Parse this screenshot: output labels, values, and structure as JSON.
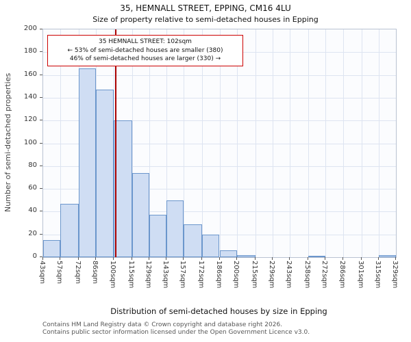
{
  "chart_data": {
    "type": "bar",
    "title": "35, HEMNALL STREET, EPPING, CM16 4LU",
    "subtitle": "Size of property relative to semi-detached houses in Epping",
    "xlabel": "Distribution of semi-detached houses by size in Epping",
    "ylabel": "Number of semi-detached properties",
    "bin_edges": [
      43,
      57,
      72,
      86,
      100,
      115,
      129,
      143,
      157,
      172,
      186,
      200,
      215,
      229,
      243,
      258,
      272,
      286,
      301,
      315,
      329
    ],
    "tick_label_suffix": "sqm",
    "values": [
      15,
      47,
      166,
      147,
      120,
      74,
      37,
      50,
      29,
      20,
      6,
      2,
      0,
      0,
      0,
      1,
      0,
      0,
      0,
      2
    ],
    "ylim": [
      0,
      200
    ],
    "ytick_step": 20,
    "grid": true,
    "legend": "none",
    "marker": {
      "value": 102,
      "color": "#aa0000"
    },
    "annotation": {
      "line1": "35 HEMNALL STREET: 102sqm",
      "line2": "← 53% of semi-detached houses are smaller (380)",
      "line3": "46% of semi-detached houses are larger (330) →"
    },
    "colors": {
      "bar_fill": "#cfddf3",
      "bar_edge": "#6b96cc",
      "grid": "#dde4f1",
      "marker": "#aa0000",
      "annotation_border": "#cc0000"
    }
  },
  "footer": {
    "line1": "Contains HM Land Registry data © Crown copyright and database right 2026.",
    "line2": "Contains public sector information licensed under the Open Government Licence v3.0."
  }
}
